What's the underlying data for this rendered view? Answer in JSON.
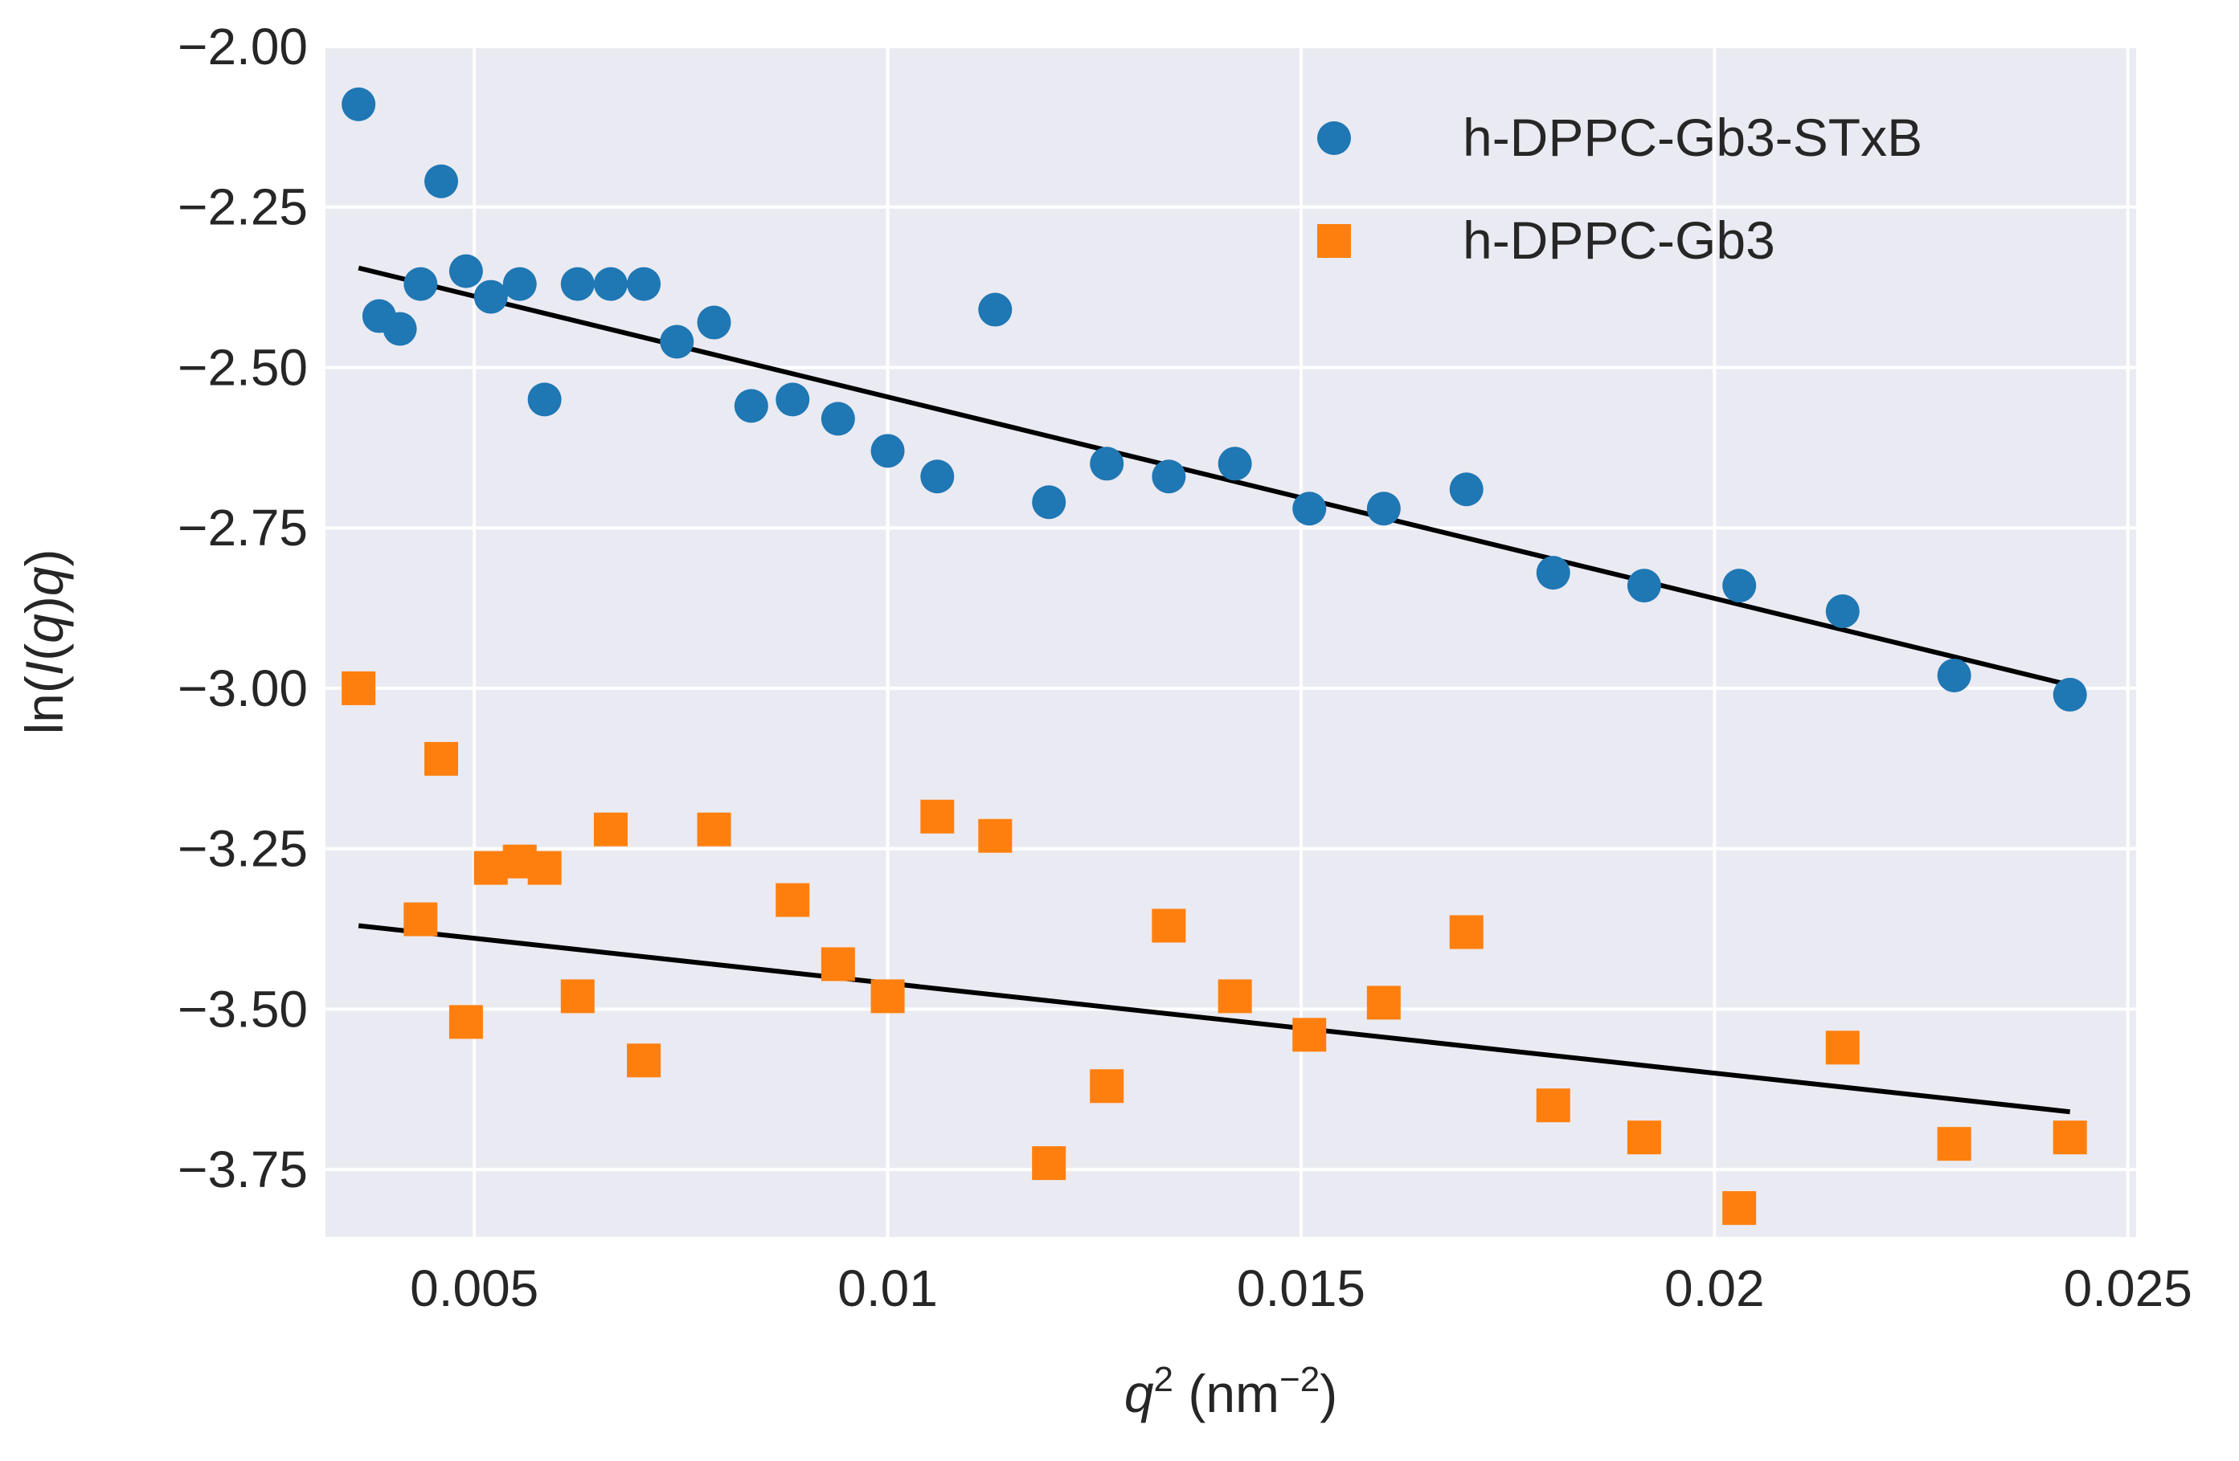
{
  "chart_data": {
    "type": "scatter",
    "title": "",
    "xlabel": {
      "var": "q",
      "sup": "2",
      "unit_pre": " (nm",
      "unit_sup": "−2",
      "unit_post": ")"
    },
    "ylabel": {
      "pre": "ln(",
      "italic1": "I",
      "mid": "(",
      "italic2": "q",
      "mid2": ")",
      "italic3": "q",
      "post": ")"
    },
    "xlim": [
      0.0032,
      0.0251
    ],
    "ylim": [
      -3.855,
      -2.0
    ],
    "xticks": [
      0.005,
      0.01,
      0.015,
      0.02,
      0.025
    ],
    "xtick_labels": [
      "0.005",
      "0.01",
      "0.015",
      "0.02",
      "0.025"
    ],
    "yticks": [
      -2.0,
      -2.25,
      -2.5,
      -2.75,
      -3.0,
      -3.25,
      -3.5,
      -3.75
    ],
    "ytick_labels": [
      "−2.00",
      "−2.25",
      "−2.50",
      "−2.75",
      "−3.00",
      "−3.25",
      "−3.50",
      "−3.75"
    ],
    "grid": true,
    "legend_position": "top-right",
    "background_color": "#eaeaf2",
    "series": [
      {
        "name": "h-DPPC-Gb3-STxB",
        "marker": "circle",
        "color": "#1f77b4",
        "x": [
          0.0036,
          0.00385,
          0.0041,
          0.00435,
          0.0046,
          0.0049,
          0.0052,
          0.00555,
          0.00585,
          0.00625,
          0.00665,
          0.00705,
          0.00745,
          0.0079,
          0.00835,
          0.00885,
          0.0094,
          0.01,
          0.0106,
          0.0113,
          0.01195,
          0.01265,
          0.0134,
          0.0142,
          0.0151,
          0.016,
          0.017,
          0.01805,
          0.01915,
          0.0203,
          0.02155,
          0.0229,
          0.0243
        ],
        "y": [
          -2.09,
          -2.42,
          -2.44,
          -2.37,
          -2.21,
          -2.35,
          -2.39,
          -2.37,
          -2.55,
          -2.37,
          -2.37,
          -2.37,
          -2.46,
          -2.43,
          -2.56,
          -2.55,
          -2.58,
          -2.63,
          -2.67,
          -2.41,
          -2.71,
          -2.65,
          -2.67,
          -2.65,
          -2.72,
          -2.72,
          -2.69,
          -2.82,
          -2.84,
          -2.84,
          -2.88,
          -2.98,
          -3.01
        ]
      },
      {
        "name": "h-DPPC-Gb3",
        "marker": "square",
        "color": "#ff7f0e",
        "x": [
          0.0036,
          0.00435,
          0.0046,
          0.0049,
          0.0052,
          0.00555,
          0.00585,
          0.00625,
          0.00665,
          0.00705,
          0.0079,
          0.00885,
          0.0094,
          0.01,
          0.0106,
          0.0113,
          0.01195,
          0.01265,
          0.0134,
          0.0142,
          0.0151,
          0.016,
          0.017,
          0.01805,
          0.01915,
          0.0203,
          0.02155,
          0.0229,
          0.0243
        ],
        "y": [
          -3.0,
          -3.36,
          -3.11,
          -3.52,
          -3.28,
          -3.27,
          -3.28,
          -3.48,
          -3.22,
          -3.58,
          -3.22,
          -3.33,
          -3.43,
          -3.48,
          -3.2,
          -3.23,
          -3.74,
          -3.62,
          -3.37,
          -3.48,
          -3.54,
          -3.49,
          -3.38,
          -3.65,
          -3.7,
          -3.81,
          -3.56,
          -3.71,
          -3.7
        ]
      }
    ],
    "fit_lines": [
      {
        "series": "h-DPPC-Gb3-STxB",
        "color": "#000000",
        "x": [
          0.0036,
          0.0243
        ],
        "y": [
          -2.345,
          -2.995
        ]
      },
      {
        "series": "h-DPPC-Gb3",
        "color": "#000000",
        "x": [
          0.0036,
          0.0243
        ],
        "y": [
          -3.37,
          -3.66
        ]
      }
    ]
  }
}
